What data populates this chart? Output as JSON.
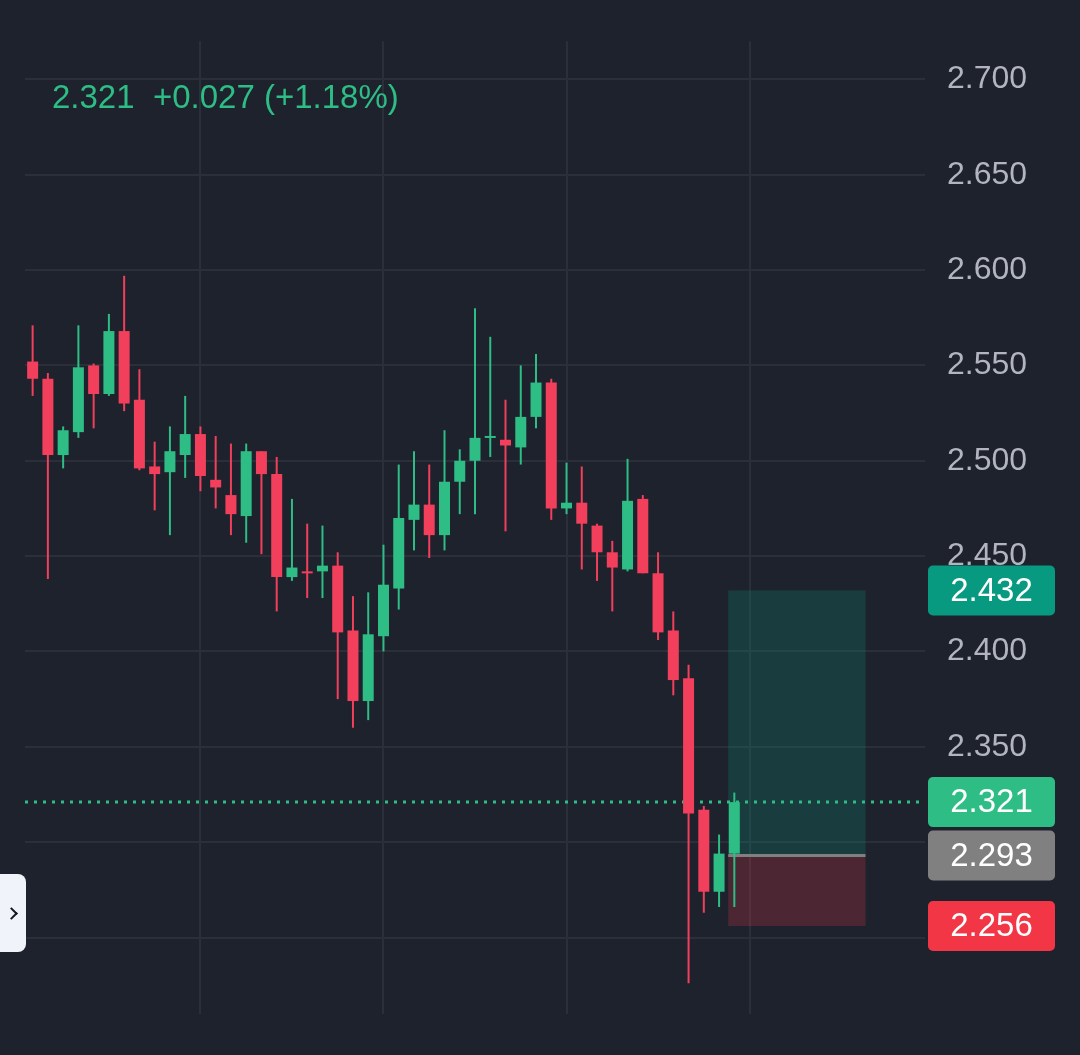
{
  "chart_data": {
    "type": "candlestick",
    "subtitle": "2.321  +0.027 (+1.18%)",
    "categories": [
      null,
      null,
      null,
      null,
      null,
      null,
      null,
      null,
      null,
      null,
      null,
      null,
      null,
      null,
      null,
      null,
      null,
      null,
      null,
      null,
      null,
      null,
      null,
      null,
      null,
      null,
      null,
      null,
      null,
      null,
      null,
      null,
      null,
      null,
      null,
      null,
      null,
      null,
      null,
      null,
      null,
      null,
      null,
      null,
      null,
      null,
      null,
      null,
      null,
      null,
      null,
      null,
      null,
      null,
      null,
      null,
      null,
      null,
      null
    ],
    "ohlc": [
      [
        2.552,
        2.571,
        2.534,
        2.543
      ],
      [
        2.543,
        2.546,
        2.438,
        2.503
      ],
      [
        2.503,
        2.518,
        2.496,
        2.516
      ],
      [
        2.515,
        2.571,
        2.512,
        2.549
      ],
      [
        2.55,
        2.551,
        2.517,
        2.535
      ],
      [
        2.535,
        2.577,
        2.534,
        2.568
      ],
      [
        2.568,
        2.597,
        2.526,
        2.53
      ],
      [
        2.532,
        2.548,
        2.495,
        2.496
      ],
      [
        2.497,
        2.51,
        2.474,
        2.493
      ],
      [
        2.494,
        2.518,
        2.461,
        2.505
      ],
      [
        2.503,
        2.534,
        2.491,
        2.514
      ],
      [
        2.514,
        2.518,
        2.484,
        2.492
      ],
      [
        2.49,
        2.513,
        2.475,
        2.486
      ],
      [
        2.482,
        2.509,
        2.461,
        2.472
      ],
      [
        2.471,
        2.509,
        2.457,
        2.505
      ],
      [
        2.505,
        2.505,
        2.451,
        2.493
      ],
      [
        2.493,
        2.502,
        2.421,
        2.439
      ],
      [
        2.439,
        2.48,
        2.437,
        2.444
      ],
      [
        2.442,
        2.467,
        2.428,
        2.441
      ],
      [
        2.442,
        2.466,
        2.428,
        2.445
      ],
      [
        2.445,
        2.452,
        2.375,
        2.41
      ],
      [
        2.411,
        2.429,
        2.36,
        2.374
      ],
      [
        2.374,
        2.431,
        2.364,
        2.409
      ],
      [
        2.408,
        2.456,
        2.4,
        2.435
      ],
      [
        2.433,
        2.498,
        2.422,
        2.47
      ],
      [
        2.469,
        2.505,
        2.453,
        2.477
      ],
      [
        2.477,
        2.498,
        2.449,
        2.461
      ],
      [
        2.461,
        2.516,
        2.453,
        2.489
      ],
      [
        2.489,
        2.506,
        2.472,
        2.5
      ],
      [
        2.5,
        2.58,
        2.472,
        2.512
      ],
      [
        2.512,
        2.565,
        2.502,
        2.513
      ],
      [
        2.511,
        2.532,
        2.463,
        2.508
      ],
      [
        2.507,
        2.55,
        2.498,
        2.523
      ],
      [
        2.523,
        2.556,
        2.517,
        2.541
      ],
      [
        2.541,
        2.543,
        2.469,
        2.475
      ],
      [
        2.475,
        2.499,
        2.472,
        2.478
      ],
      [
        2.478,
        2.497,
        2.443,
        2.467
      ],
      [
        2.466,
        2.467,
        2.437,
        2.452
      ],
      [
        2.452,
        2.458,
        2.421,
        2.444
      ],
      [
        2.443,
        2.501,
        2.442,
        2.479
      ],
      [
        2.48,
        2.482,
        2.441,
        2.441
      ],
      [
        2.441,
        2.452,
        2.406,
        2.41
      ],
      [
        2.411,
        2.421,
        2.377,
        2.385
      ],
      [
        2.386,
        2.393,
        2.226,
        2.315
      ],
      [
        2.317,
        2.319,
        2.263,
        2.274
      ],
      [
        2.274,
        2.304,
        2.266,
        2.294
      ],
      [
        2.294,
        2.326,
        2.266,
        2.321
      ],
      null,
      null,
      null,
      null,
      null,
      null,
      null,
      null,
      null,
      null,
      null,
      null
    ],
    "colors": [
      "#f23f5b",
      "#f23f5b",
      "#2ebd85",
      "#2ebd85",
      "#f23f5b",
      "#2ebd85",
      "#f23f5b",
      "#f23f5b",
      "#f23f5b",
      "#2ebd85",
      "#2ebd85",
      "#f23f5b",
      "#f23f5b",
      "#f23f5b",
      "#2ebd85",
      "#f23f5b",
      "#f23f5b",
      "#2ebd85",
      "#f23f5b",
      "#2ebd85",
      "#f23f5b",
      "#f23f5b",
      "#2ebd85",
      "#2ebd85",
      "#2ebd85",
      "#2ebd85",
      "#f23f5b",
      "#2ebd85",
      "#2ebd85",
      "#2ebd85",
      "#2ebd85",
      "#f23f5b",
      "#2ebd85",
      "#2ebd85",
      "#f23f5b",
      "#2ebd85",
      "#f23f5b",
      "#f23f5b",
      "#f23f5b",
      "#2ebd85",
      "#f23f5b",
      "#f23f5b",
      "#f23f5b",
      "#f23f5b",
      "#f23f5b",
      "#2ebd85",
      "#2ebd85",
      null,
      null,
      null,
      null,
      null,
      null,
      null,
      null,
      null,
      null,
      null,
      null
    ],
    "ylim": [
      2.21,
      2.72
    ],
    "yticks": [
      {
        "value": 2.25,
        "label": null
      },
      {
        "value": 2.3,
        "label": null
      },
      {
        "value": 2.35,
        "label": "2.350"
      },
      {
        "value": 2.4,
        "label": "2.400"
      },
      {
        "value": 2.45,
        "label": "2.450"
      },
      {
        "value": 2.5,
        "label": "2.500"
      },
      {
        "value": 2.55,
        "label": "2.550"
      },
      {
        "value": 2.6,
        "label": "2.600"
      },
      {
        "value": 2.65,
        "label": "2.650"
      },
      {
        "value": 2.7,
        "label": "2.700"
      }
    ],
    "tick_labels": "y",
    "grid": true,
    "ref_lines": [
      {
        "axis": "y",
        "value": 2.321,
        "label": "2.321",
        "color": "#2ebd85",
        "line_style": "dotted"
      },
      {
        "axis": "y",
        "value": 2.293,
        "label": "2.293",
        "color": "#808080",
        "line_style": "solid"
      }
    ],
    "bands": [
      {
        "axis": "y",
        "from": 2.293,
        "to": 2.432,
        "label": "2.432",
        "color": "#089981"
      },
      {
        "axis": "y",
        "from": 2.256,
        "to": 2.293,
        "label": "2.256",
        "color": "#f23645"
      }
    ]
  }
}
